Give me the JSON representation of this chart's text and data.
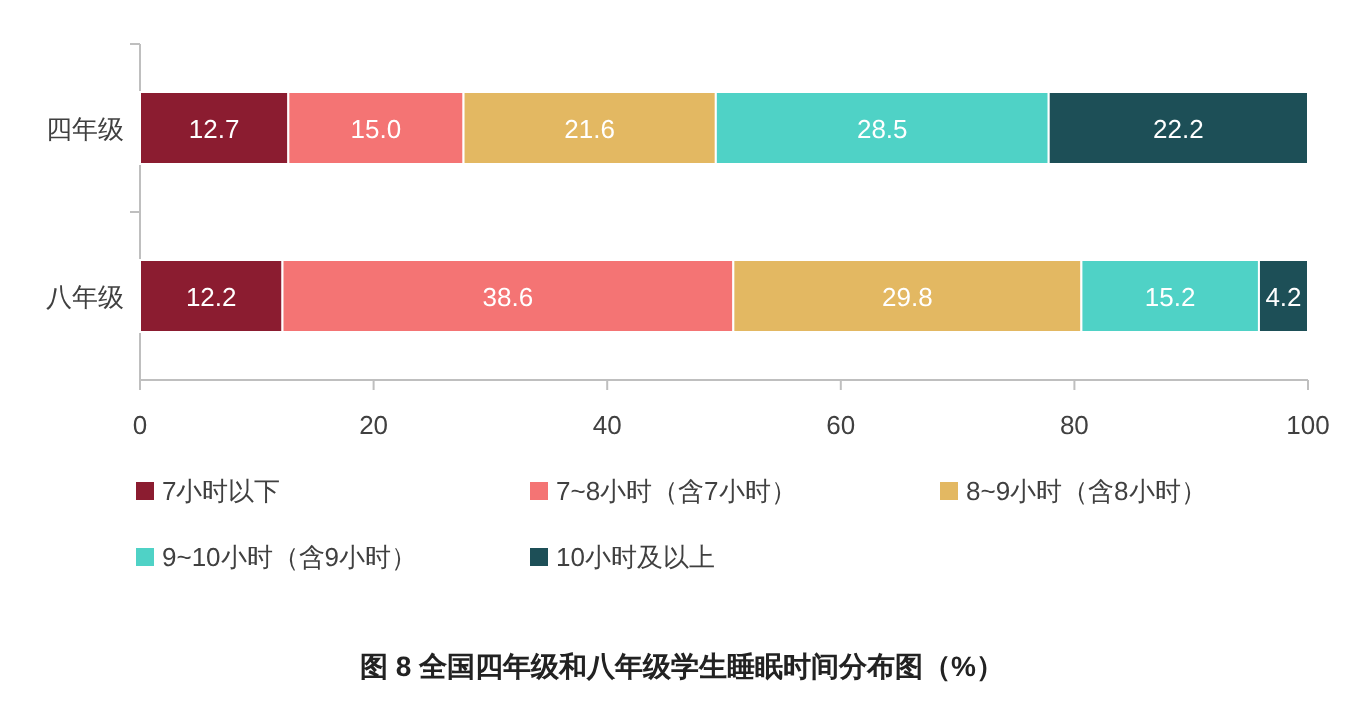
{
  "chart_data": {
    "type": "bar",
    "orientation": "horizontal",
    "stacked": true,
    "title": "图 8  全国四年级和八年级学生睡眠时间分布图（%）",
    "categories": [
      "四年级",
      "八年级"
    ],
    "series": [
      {
        "name": "7小时以下",
        "color": "#8b1c30",
        "values": [
          12.7,
          12.2
        ],
        "value_labels": [
          "12.7",
          "12.2"
        ]
      },
      {
        "name": "7~8小时（含7小时）",
        "color": "#f47474",
        "values": [
          15.0,
          38.6
        ],
        "value_labels": [
          "15.0",
          "38.6"
        ]
      },
      {
        "name": "8~9小时（含8小时）",
        "color": "#e3b862",
        "values": [
          21.6,
          29.8
        ],
        "value_labels": [
          "21.6",
          "29.8"
        ]
      },
      {
        "name": "9~10小时（含9小时）",
        "color": "#4fd2c6",
        "values": [
          28.5,
          15.2
        ],
        "value_labels": [
          "28.5",
          "15.2"
        ]
      },
      {
        "name": "10小时及以上",
        "color": "#1d4f57",
        "values": [
          22.2,
          4.2
        ],
        "value_labels": [
          "22.2",
          "4.2"
        ]
      }
    ],
    "xlim": [
      0,
      100
    ],
    "xticks": [
      0,
      20,
      40,
      60,
      80,
      100
    ],
    "legend": "bottom"
  }
}
